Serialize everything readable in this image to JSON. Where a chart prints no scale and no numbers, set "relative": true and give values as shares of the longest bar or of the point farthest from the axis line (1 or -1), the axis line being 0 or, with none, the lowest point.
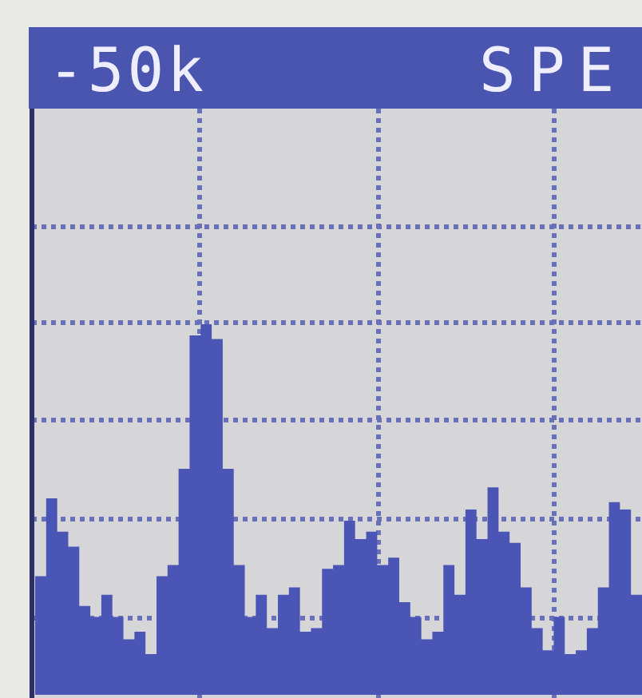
{
  "chart_data": {
    "type": "area",
    "title": "-50k",
    "subtitle": "SPE",
    "relative": true,
    "grid": true,
    "color": "#4a55b6",
    "categories": [
      null,
      null,
      null,
      null,
      null,
      null,
      null,
      null,
      null,
      null,
      null,
      null,
      null,
      null,
      null,
      null,
      null,
      null,
      null,
      null,
      null,
      null,
      null,
      null,
      null,
      null,
      null,
      null,
      null,
      null,
      null,
      null,
      null,
      null,
      null,
      null,
      null,
      null,
      null,
      null,
      null,
      null,
      null,
      null,
      null,
      null,
      null,
      null,
      null,
      null,
      null,
      null,
      null,
      null,
      null,
      null
    ],
    "values": [
      0.32,
      0.53,
      0.44,
      0.4,
      0.24,
      0.21,
      0.27,
      0.21,
      0.15,
      0.17,
      0.11,
      0.32,
      0.35,
      0.61,
      0.97,
      1,
      0.96,
      0.61,
      0.35,
      0.21,
      0.27,
      0.18,
      0.27,
      0.29,
      0.17,
      0.18,
      0.34,
      0.35,
      0.47,
      0.42,
      0.44,
      0.35,
      0.37,
      0.25,
      0.21,
      0.15,
      0.17,
      0.35,
      0.27,
      0.5,
      0.42,
      0.56,
      0.44,
      0.41,
      0.29,
      0.18,
      0.12,
      0.21,
      0.11,
      0.12,
      0.18,
      0.29,
      0.52,
      0.5,
      0.27,
      0.24
    ]
  }
}
